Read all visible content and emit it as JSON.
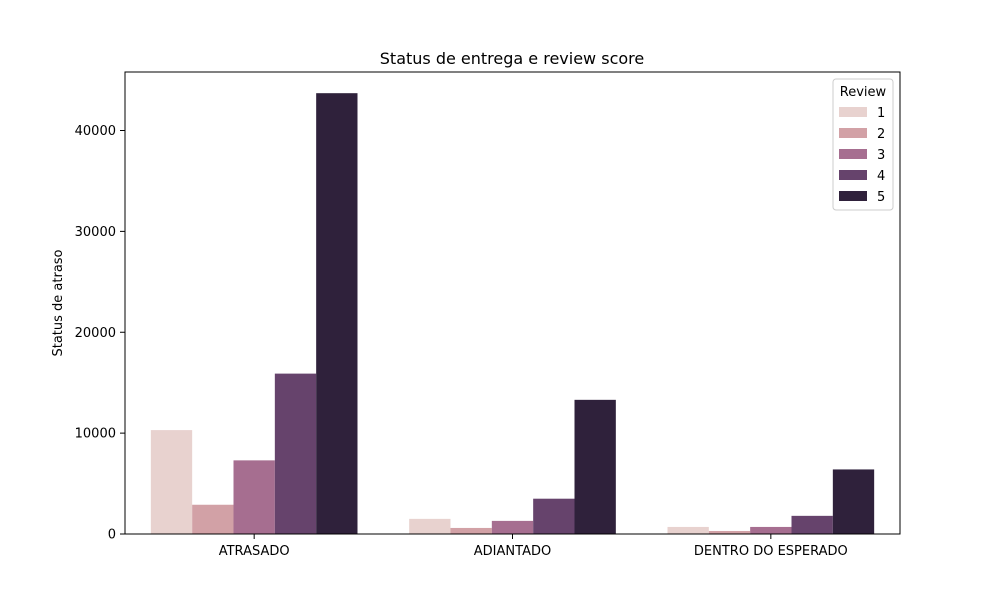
{
  "chart_data": {
    "type": "bar",
    "title": "Status de entrega e review score",
    "xlabel": "",
    "ylabel": "Status de atraso",
    "categories": [
      "ATRASADO",
      "ADIANTADO",
      "DENTRO DO ESPERADO"
    ],
    "series": [
      {
        "name": "1",
        "values": [
          10300,
          1500,
          700
        ],
        "color": "#e8d2cf"
      },
      {
        "name": "2",
        "values": [
          2900,
          600,
          300
        ],
        "color": "#d2a1a6"
      },
      {
        "name": "3",
        "values": [
          7300,
          1300,
          700
        ],
        "color": "#a66e90"
      },
      {
        "name": "4",
        "values": [
          15900,
          3500,
          1800
        ],
        "color": "#66436c"
      },
      {
        "name": "5",
        "values": [
          43700,
          13300,
          6400
        ],
        "color": "#2f213b"
      }
    ],
    "ylim": [
      0,
      45800
    ],
    "yticks": [
      0,
      10000,
      20000,
      30000,
      40000
    ],
    "grid": false,
    "legend": {
      "title": "Review",
      "placement": "top-right"
    }
  }
}
